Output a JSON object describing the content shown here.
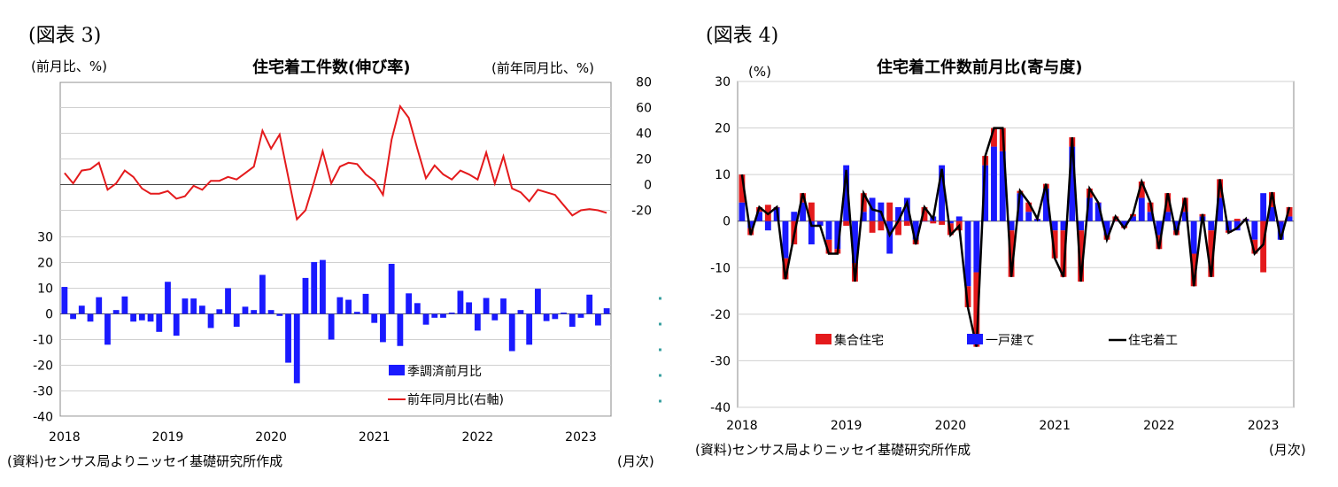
{
  "charts": [
    {
      "figure_label": "(図表 3)",
      "title": "住宅着工件数(伸び率)",
      "left_unit": "(前月比、%)",
      "right_unit": "(前年同月比、%)",
      "month_unit": "(月次)",
      "source": "(資料)センサス局よりニッセイ基礎研究所作成"
    },
    {
      "figure_label": "(図表 4)",
      "title": "住宅着工件数前月比(寄与度)",
      "unit": "(%)",
      "month_unit": "(月次)",
      "source": "(資料)センサス局よりニッセイ基礎研究所作成"
    }
  ],
  "colors": {
    "mom_bar": "#1a1aff",
    "yoy_line": "#e41a1c",
    "multi_family": "#e41a1c",
    "single_family": "#1a1aff",
    "total_line": "#000000"
  },
  "chart_data": [
    {
      "type": "bar",
      "title": "住宅着工件数(伸び率)",
      "x_labels": [
        "2018",
        "2019",
        "2020",
        "2021",
        "2022",
        "2023"
      ],
      "months": "2018-01 to 2023-04",
      "left_axis": {
        "label": "(前月比、%)",
        "range": [
          -40,
          30
        ],
        "ticks": [
          30,
          20,
          10,
          0,
          -10,
          -20,
          -30,
          -40
        ]
      },
      "right_axis": {
        "label": "(前年同月比、%)",
        "range": [
          -20,
          80
        ],
        "ticks": [
          80,
          60,
          40,
          20,
          0,
          -20
        ]
      },
      "series": [
        {
          "name": "季調済前月比",
          "kind": "bar",
          "axis": "left",
          "values": [
            10.5,
            -2,
            3.2,
            -3,
            6.5,
            -12,
            1.5,
            6.8,
            -3,
            -2.5,
            -3,
            -7,
            12.5,
            -8.5,
            6,
            6,
            3.2,
            -5.5,
            1.8,
            10,
            -5,
            2.8,
            1.5,
            15.2,
            1.5,
            -0.8,
            -19,
            -27,
            14,
            20.2,
            21,
            -10,
            6.5,
            5.5,
            0.8,
            7.8,
            -3.5,
            -11,
            19.5,
            -12.5,
            8,
            4.2,
            -4.2,
            -1.5,
            -1.5,
            0.5,
            9,
            4.5,
            -6.5,
            6.2,
            -2.5,
            6,
            -14.5,
            1.5,
            -12,
            9.8,
            -2.8,
            -2,
            0.5,
            -5,
            -1.5,
            7.5,
            -4.5,
            2.2
          ]
        },
        {
          "name": "前年同月比(右軸)",
          "kind": "line",
          "axis": "right",
          "values": [
            9,
            1,
            11,
            12,
            17,
            -4,
            1,
            11,
            6,
            -3,
            -7,
            -7,
            -5,
            -11,
            -9,
            -1,
            -4,
            3,
            3,
            6,
            4,
            9,
            14,
            42,
            28,
            39,
            6,
            -27,
            -20,
            2,
            26,
            1,
            14,
            17,
            16,
            8,
            3,
            -8,
            35,
            61,
            52,
            28,
            5,
            15,
            8,
            4,
            11,
            8,
            4,
            25,
            1,
            22,
            -3,
            -6,
            -13,
            -4,
            -6,
            -8,
            -16,
            -24,
            -20,
            -19,
            -20,
            -22
          ]
        }
      ],
      "legend_position": "bottom-right"
    },
    {
      "type": "bar",
      "title": "住宅着工件数前月比(寄与度)",
      "x_labels": [
        "2018",
        "2019",
        "2020",
        "2021",
        "2022",
        "2023"
      ],
      "months": "2018-01 to 2023-04",
      "y_axis": {
        "label": "(%)",
        "range": [
          -40,
          30
        ],
        "ticks": [
          30,
          20,
          10,
          0,
          -10,
          -20,
          -30,
          -40
        ]
      },
      "series": [
        {
          "name": "集合住宅",
          "kind": "stacked-bar",
          "values": [
            6,
            -1.5,
            1,
            3.5,
            0,
            -4.5,
            -5,
            2,
            4,
            0,
            -3,
            -1,
            -1,
            -4,
            4,
            -2.5,
            -2,
            4,
            -3,
            -1,
            -1,
            3,
            -0.5,
            -0.8,
            -2.5,
            -2,
            -4.5,
            -16,
            2,
            4,
            5,
            -10,
            0.5,
            2,
            0,
            1,
            -6,
            -10,
            2,
            -11,
            2,
            0,
            -1,
            1,
            -0.5,
            0.5,
            3.5,
            2,
            -3,
            4,
            -1,
            3,
            -7,
            0.5,
            -10,
            4,
            -0.5,
            0.5,
            0,
            -3,
            -11,
            3.2,
            0,
            2
          ]
        },
        {
          "name": "一戸建て",
          "kind": "stacked-bar",
          "values": [
            4,
            -1.5,
            2,
            -2,
            3,
            -8,
            2,
            4,
            -5,
            -1,
            -4,
            -6,
            12,
            -9,
            2,
            5,
            4,
            -7,
            3,
            5,
            -4,
            0,
            1,
            12,
            -0.5,
            1,
            -14,
            -11,
            12,
            16,
            15,
            -2,
            6,
            2,
            0.5,
            7,
            -2,
            -2,
            16,
            -2,
            5,
            4,
            -3,
            0,
            -1,
            1,
            5,
            2,
            -3,
            2,
            -2,
            2,
            -7,
            1,
            -2,
            5,
            -2,
            -2,
            0.5,
            -4,
            6,
            3,
            -4,
            1
          ]
        },
        {
          "name": "住宅着工",
          "kind": "line",
          "values": [
            10,
            -3,
            3,
            1.5,
            3,
            -12.5,
            -3,
            6,
            -1,
            -1,
            -7,
            -7,
            11,
            -13,
            6,
            2.5,
            2,
            -3,
            0,
            4,
            -5,
            3,
            0.5,
            11.2,
            -3,
            -1,
            -18.5,
            -27,
            14,
            20,
            20,
            -12,
            6.5,
            4,
            0.5,
            8,
            -8,
            -12,
            18,
            -13,
            7,
            4,
            -4,
            1,
            -1.5,
            1.5,
            8.5,
            4,
            -6,
            6,
            -3,
            5,
            -14,
            1.5,
            -12,
            9,
            -2.5,
            -1.5,
            0.5,
            -7,
            -5,
            6.2,
            -4,
            3
          ]
        }
      ],
      "legend_position": "bottom"
    }
  ]
}
